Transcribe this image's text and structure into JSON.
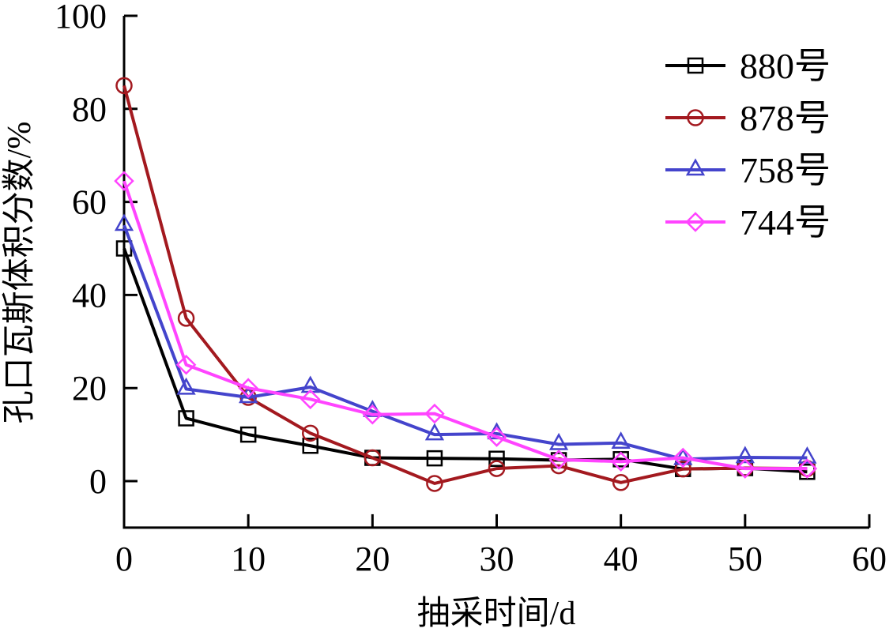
{
  "chart_data": {
    "type": "line",
    "title": "",
    "xlabel": "抽采时间/d",
    "ylabel": "孔口瓦斯体积分数/%",
    "xlim": [
      0,
      60
    ],
    "ylim": [
      -10,
      100
    ],
    "xticks": [
      0,
      10,
      20,
      30,
      40,
      50,
      60
    ],
    "yticks": [
      0,
      20,
      40,
      60,
      80,
      100
    ],
    "xtick_labels": [
      "0",
      "10",
      "20",
      "30",
      "40",
      "50",
      "60"
    ],
    "ytick_labels": [
      "0",
      "20",
      "40",
      "60",
      "80",
      "100"
    ],
    "grid": false,
    "legend_position": "top-right",
    "x": [
      0,
      5,
      10,
      15,
      20,
      25,
      30,
      35,
      40,
      45,
      50,
      55
    ],
    "series": [
      {
        "name": "880号",
        "color": "#000000",
        "marker": "square",
        "values": [
          50,
          13.5,
          10,
          7.6,
          5,
          4.9,
          4.8,
          4.5,
          4.7,
          2.6,
          2.8,
          2
        ]
      },
      {
        "name": "878号",
        "color": "#A3191F",
        "marker": "circle",
        "values": [
          85,
          35,
          18,
          10.3,
          5,
          -0.5,
          2.7,
          3.3,
          -0.3,
          2.6,
          2.8,
          2.7
        ]
      },
      {
        "name": "758号",
        "color": "#4444CC",
        "marker": "triangle",
        "values": [
          55,
          19.8,
          18,
          20.2,
          15,
          10,
          10.2,
          7.9,
          8.2,
          4.7,
          5.1,
          5
        ]
      },
      {
        "name": "744号",
        "color": "#FF44FF",
        "marker": "diamond",
        "values": [
          64.5,
          25,
          20,
          17.6,
          14.3,
          14.5,
          9.5,
          4.6,
          4.2,
          5,
          2.7,
          2.7
        ]
      }
    ]
  }
}
